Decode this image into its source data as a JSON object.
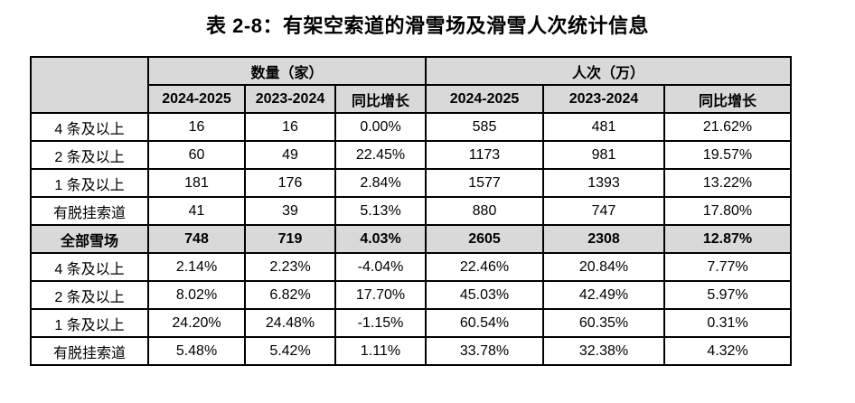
{
  "title": "表 2-8：有架空索道的滑雪场及滑雪人次统计信息",
  "table": {
    "group_headers": {
      "quantity": "数量（家）",
      "visits": "人次（万）"
    },
    "col_headers": [
      "2024-2025",
      "2023-2024",
      "同比增长",
      "2024-2025",
      "2023-2024",
      "同比增长"
    ],
    "rows": [
      {
        "label": "4 条及以上",
        "cells": [
          "16",
          "16",
          "0.00%",
          "585",
          "481",
          "21.62%"
        ]
      },
      {
        "label": "2 条及以上",
        "cells": [
          "60",
          "49",
          "22.45%",
          "1173",
          "981",
          "19.57%"
        ]
      },
      {
        "label": "1 条及以上",
        "cells": [
          "181",
          "176",
          "2.84%",
          "1577",
          "1393",
          "13.22%"
        ]
      },
      {
        "label": "有脱挂索道",
        "cells": [
          "41",
          "39",
          "5.13%",
          "880",
          "747",
          "17.80%"
        ]
      },
      {
        "label": "全部雪场",
        "cells": [
          "748",
          "719",
          "4.03%",
          "2605",
          "2308",
          "12.87%"
        ],
        "emphasis": true
      },
      {
        "label": "4 条及以上",
        "cells": [
          "2.14%",
          "2.23%",
          "-4.04%",
          "22.46%",
          "20.84%",
          "7.77%"
        ]
      },
      {
        "label": "2 条及以上",
        "cells": [
          "8.02%",
          "6.82%",
          "17.70%",
          "45.03%",
          "42.49%",
          "5.97%"
        ]
      },
      {
        "label": "1 条及以上",
        "cells": [
          "24.20%",
          "24.48%",
          "-1.15%",
          "60.54%",
          "60.35%",
          "0.31%"
        ]
      },
      {
        "label": "有脱挂索道",
        "cells": [
          "5.48%",
          "5.42%",
          "1.11%",
          "33.78%",
          "32.38%",
          "4.32%"
        ]
      }
    ],
    "colors": {
      "header_bg": "#d9d9d9",
      "border": "#000000",
      "text": "#000000"
    }
  }
}
